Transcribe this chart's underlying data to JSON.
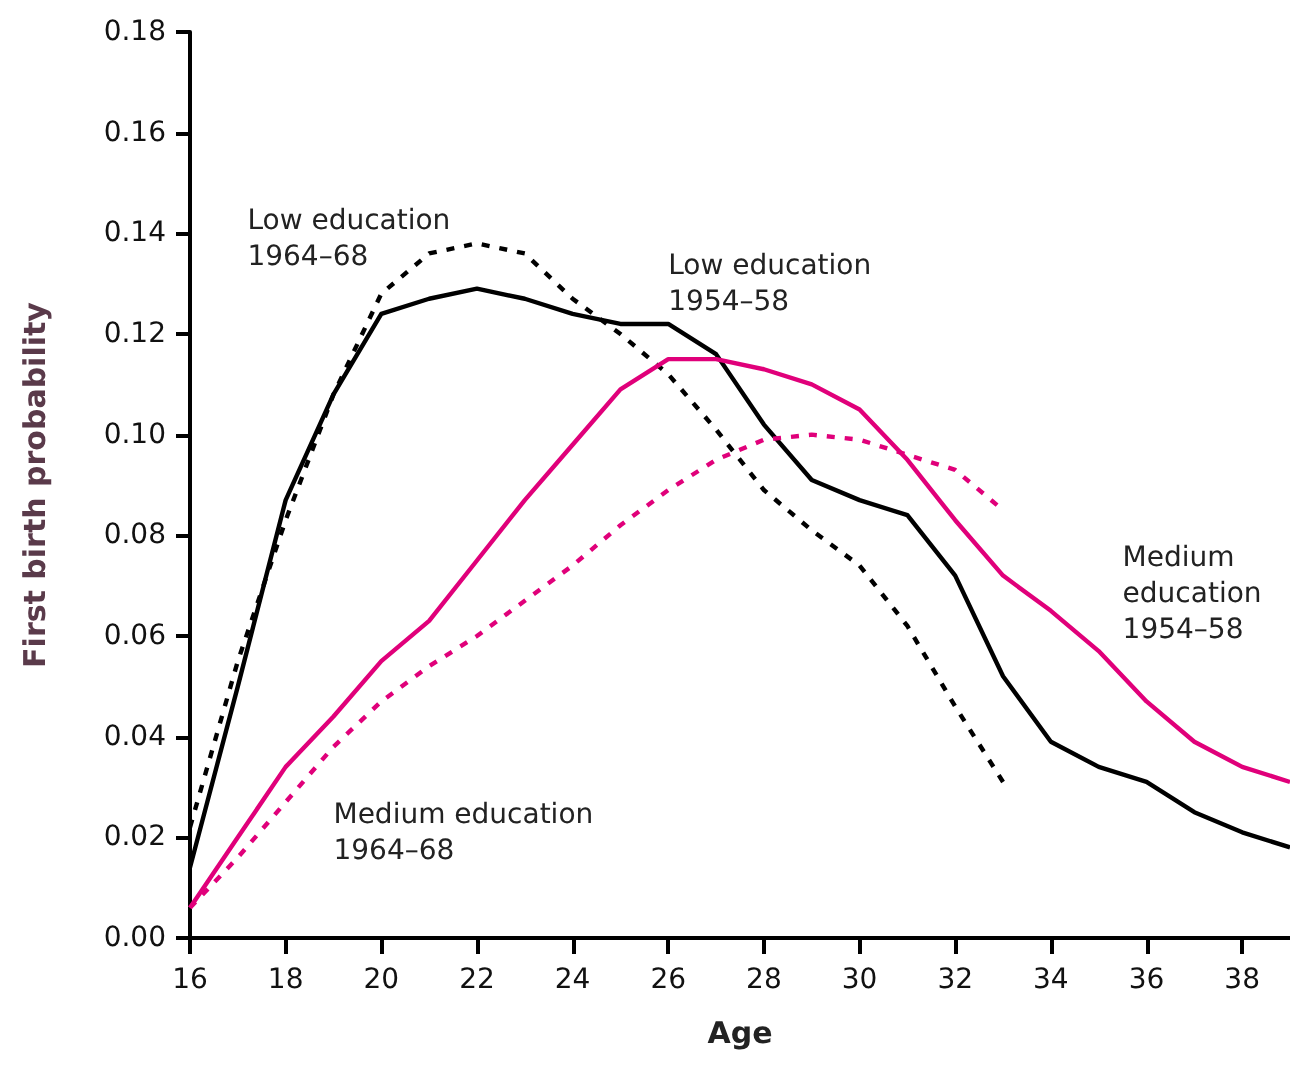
{
  "chart_data": {
    "type": "line",
    "xlabel": "Age",
    "ylabel": "First birth probability",
    "x": [
      16,
      17,
      18,
      19,
      20,
      21,
      22,
      23,
      24,
      25,
      26,
      27,
      28,
      29,
      30,
      31,
      32,
      33,
      34,
      35,
      36,
      37,
      38,
      39
    ],
    "xlim": [
      16,
      39
    ],
    "xticks": [
      16,
      18,
      20,
      22,
      24,
      26,
      28,
      30,
      32,
      34,
      36,
      38
    ],
    "ylim": [
      0,
      0.18
    ],
    "yticks": [
      {
        "value": 0,
        "label": "0.00"
      },
      {
        "value": 0.02,
        "label": "0.02"
      },
      {
        "value": 0.04,
        "label": "0.04"
      },
      {
        "value": 0.06,
        "label": "0.06"
      },
      {
        "value": 0.08,
        "label": "0.08"
      },
      {
        "value": 0.1,
        "label": "0.10"
      },
      {
        "value": 0.12,
        "label": "0.12"
      },
      {
        "value": 0.14,
        "label": "0.14"
      },
      {
        "value": 0.16,
        "label": "0.16"
      },
      {
        "value": 0.18,
        "label": "0.18"
      }
    ],
    "grid": false,
    "legend": false,
    "marker": "none",
    "series": [
      {
        "name": "Low education\n1964–68",
        "color": "#000000",
        "line_style": "dashed",
        "values": [
          0.022,
          0.055,
          0.083,
          0.108,
          0.128,
          0.136,
          0.138,
          0.136,
          0.127,
          0.12,
          0.112,
          0.101,
          0.089,
          0.081,
          0.074,
          0.062,
          0.046,
          0.031,
          null,
          null,
          null,
          null,
          null,
          null
        ]
      },
      {
        "name": "Low education\n1954–58",
        "color": "#000000",
        "line_style": "solid",
        "values": [
          0.014,
          0.05,
          0.087,
          0.108,
          0.124,
          0.127,
          0.129,
          0.127,
          0.124,
          0.122,
          0.122,
          0.116,
          0.102,
          0.091,
          0.087,
          0.084,
          0.072,
          0.052,
          0.039,
          0.034,
          0.031,
          0.025,
          0.021,
          0.018
        ]
      },
      {
        "name": "Medium\neducation\n1954–58",
        "color": "#e0007a",
        "line_style": "solid",
        "values": [
          0.006,
          0.02,
          0.034,
          0.044,
          0.055,
          0.063,
          0.075,
          0.087,
          0.098,
          0.109,
          0.115,
          0.115,
          0.113,
          0.11,
          0.105,
          0.095,
          0.083,
          0.072,
          0.065,
          0.057,
          0.047,
          0.039,
          0.034,
          0.031
        ]
      },
      {
        "name": "Medium education\n1964–68",
        "color": "#e0007a",
        "line_style": "dashed",
        "values": [
          0.006,
          0.016,
          0.027,
          0.038,
          0.047,
          0.054,
          0.06,
          0.067,
          0.074,
          0.082,
          0.089,
          0.095,
          0.099,
          0.1,
          0.099,
          0.096,
          0.093,
          0.085,
          null,
          null,
          null,
          null,
          null,
          null
        ]
      }
    ]
  }
}
